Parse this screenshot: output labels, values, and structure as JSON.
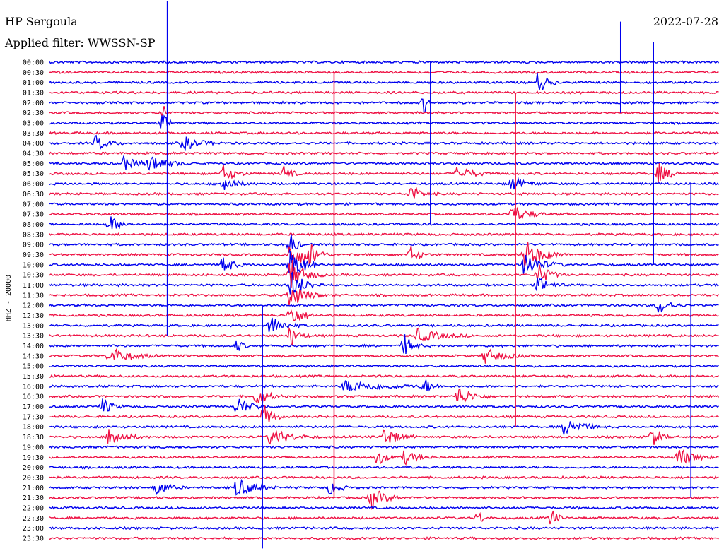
{
  "header": {
    "station": "HP Sergoula",
    "filter": "Applied filter: WWSSN-SP",
    "date": "2022-07-28"
  },
  "chart_data": {
    "type": "line",
    "title": "HP Sergoula",
    "subtitle": "Applied filter: WWSSN-SP",
    "date": "2022-07-28",
    "ylabel": "HHZ - 20000",
    "xlabel": "",
    "row_labels": [
      "00:00",
      "00:30",
      "01:00",
      "01:30",
      "02:00",
      "02:30",
      "03:00",
      "03:30",
      "04:00",
      "04:30",
      "05:00",
      "05:30",
      "06:00",
      "06:30",
      "07:00",
      "07:30",
      "08:00",
      "08:30",
      "09:00",
      "09:30",
      "10:00",
      "10:30",
      "11:00",
      "11:30",
      "12:00",
      "12:30",
      "13:00",
      "13:30",
      "14:00",
      "14:30",
      "15:00",
      "15:30",
      "16:00",
      "16:30",
      "17:00",
      "17:30",
      "18:00",
      "18:30",
      "19:00",
      "19:30",
      "20:00",
      "20:30",
      "21:00",
      "21:30",
      "22:00",
      "22:30",
      "23:00",
      "23:30"
    ],
    "trace_colors": [
      "#0000ee",
      "#ee1144"
    ],
    "grid": false,
    "events": [
      {
        "row": 2,
        "x": 0.73,
        "amp": 18,
        "dur": 0.03
      },
      {
        "row": 4,
        "x": 0.56,
        "amp": 16,
        "dur": 0.01
      },
      {
        "row": 5,
        "x": 0.17,
        "amp": 12,
        "dur": 0.01
      },
      {
        "row": 6,
        "x": 0.17,
        "amp": 14,
        "dur": 0.02
      },
      {
        "row": 8,
        "x": 0.07,
        "amp": 12,
        "dur": 0.04
      },
      {
        "row": 8,
        "x": 0.2,
        "amp": 10,
        "dur": 0.06
      },
      {
        "row": 10,
        "x": 0.11,
        "amp": 10,
        "dur": 0.05
      },
      {
        "row": 10,
        "x": 0.15,
        "amp": 12,
        "dur": 0.06
      },
      {
        "row": 11,
        "x": 0.26,
        "amp": 12,
        "dur": 0.04
      },
      {
        "row": 11,
        "x": 0.35,
        "amp": 10,
        "dur": 0.03
      },
      {
        "row": 11,
        "x": 0.61,
        "amp": 12,
        "dur": 0.05
      },
      {
        "row": 11,
        "x": 0.91,
        "amp": 14,
        "dur": 0.04
      },
      {
        "row": 12,
        "x": 0.26,
        "amp": 14,
        "dur": 0.04
      },
      {
        "row": 12,
        "x": 0.69,
        "amp": 10,
        "dur": 0.05
      },
      {
        "row": 13,
        "x": 0.54,
        "amp": 12,
        "dur": 0.04
      },
      {
        "row": 15,
        "x": 0.69,
        "amp": 12,
        "dur": 0.06
      },
      {
        "row": 16,
        "x": 0.09,
        "amp": 12,
        "dur": 0.04
      },
      {
        "row": 18,
        "x": 0.36,
        "amp": 22,
        "dur": 0.02
      },
      {
        "row": 19,
        "x": 0.36,
        "amp": 26,
        "dur": 0.05
      },
      {
        "row": 19,
        "x": 0.39,
        "amp": 14,
        "dur": 0.03
      },
      {
        "row": 19,
        "x": 0.71,
        "amp": 22,
        "dur": 0.06
      },
      {
        "row": 19,
        "x": 0.54,
        "amp": 12,
        "dur": 0.03
      },
      {
        "row": 20,
        "x": 0.26,
        "amp": 16,
        "dur": 0.03
      },
      {
        "row": 20,
        "x": 0.36,
        "amp": 24,
        "dur": 0.05
      },
      {
        "row": 20,
        "x": 0.71,
        "amp": 18,
        "dur": 0.06
      },
      {
        "row": 21,
        "x": 0.36,
        "amp": 24,
        "dur": 0.05
      },
      {
        "row": 21,
        "x": 0.73,
        "amp": 16,
        "dur": 0.04
      },
      {
        "row": 22,
        "x": 0.36,
        "amp": 22,
        "dur": 0.05
      },
      {
        "row": 22,
        "x": 0.73,
        "amp": 12,
        "dur": 0.04
      },
      {
        "row": 23,
        "x": 0.36,
        "amp": 20,
        "dur": 0.05
      },
      {
        "row": 24,
        "x": 0.91,
        "amp": 12,
        "dur": 0.04
      },
      {
        "row": 25,
        "x": 0.36,
        "amp": 18,
        "dur": 0.04
      },
      {
        "row": 26,
        "x": 0.33,
        "amp": 14,
        "dur": 0.05
      },
      {
        "row": 27,
        "x": 0.36,
        "amp": 16,
        "dur": 0.03
      },
      {
        "row": 27,
        "x": 0.55,
        "amp": 10,
        "dur": 0.08
      },
      {
        "row": 28,
        "x": 0.53,
        "amp": 16,
        "dur": 0.03
      },
      {
        "row": 28,
        "x": 0.28,
        "amp": 10,
        "dur": 0.02
      },
      {
        "row": 29,
        "x": 0.09,
        "amp": 12,
        "dur": 0.07
      },
      {
        "row": 29,
        "x": 0.65,
        "amp": 12,
        "dur": 0.06
      },
      {
        "row": 32,
        "x": 0.44,
        "amp": 8,
        "dur": 0.14
      },
      {
        "row": 32,
        "x": 0.56,
        "amp": 10,
        "dur": 0.03
      },
      {
        "row": 33,
        "x": 0.31,
        "amp": 14,
        "dur": 0.04
      },
      {
        "row": 33,
        "x": 0.61,
        "amp": 14,
        "dur": 0.05
      },
      {
        "row": 34,
        "x": 0.28,
        "amp": 14,
        "dur": 0.05
      },
      {
        "row": 34,
        "x": 0.08,
        "amp": 12,
        "dur": 0.03
      },
      {
        "row": 35,
        "x": 0.32,
        "amp": 18,
        "dur": 0.03
      },
      {
        "row": 36,
        "x": 0.77,
        "amp": 14,
        "dur": 0.06
      },
      {
        "row": 37,
        "x": 0.09,
        "amp": 16,
        "dur": 0.05
      },
      {
        "row": 37,
        "x": 0.33,
        "amp": 12,
        "dur": 0.07
      },
      {
        "row": 37,
        "x": 0.5,
        "amp": 14,
        "dur": 0.05
      },
      {
        "row": 37,
        "x": 0.9,
        "amp": 14,
        "dur": 0.03
      },
      {
        "row": 39,
        "x": 0.49,
        "amp": 12,
        "dur": 0.03
      },
      {
        "row": 39,
        "x": 0.53,
        "amp": 10,
        "dur": 0.05
      },
      {
        "row": 39,
        "x": 0.94,
        "amp": 16,
        "dur": 0.05
      },
      {
        "row": 42,
        "x": 0.16,
        "amp": 12,
        "dur": 0.04
      },
      {
        "row": 42,
        "x": 0.28,
        "amp": 14,
        "dur": 0.06
      },
      {
        "row": 42,
        "x": 0.42,
        "amp": 12,
        "dur": 0.03
      },
      {
        "row": 43,
        "x": 0.48,
        "amp": 16,
        "dur": 0.05
      },
      {
        "row": 45,
        "x": 0.75,
        "amp": 16,
        "dur": 0.02
      },
      {
        "row": 45,
        "x": 0.64,
        "amp": 10,
        "dur": 0.02
      }
    ],
    "spikes": [
      {
        "x": 0.176,
        "from_row": -6,
        "to_row": 27
      },
      {
        "x": 0.318,
        "from_row": 24,
        "to_row": 48
      },
      {
        "x": 0.425,
        "from_row": 1,
        "to_row": 43
      },
      {
        "x": 0.569,
        "from_row": 0,
        "to_row": 16
      },
      {
        "x": 0.696,
        "from_row": 3,
        "to_row": 36
      },
      {
        "x": 0.853,
        "from_row": -4,
        "to_row": 5
      },
      {
        "x": 0.902,
        "from_row": -2,
        "to_row": 20
      },
      {
        "x": 0.958,
        "from_row": 12,
        "to_row": 43
      }
    ]
  }
}
